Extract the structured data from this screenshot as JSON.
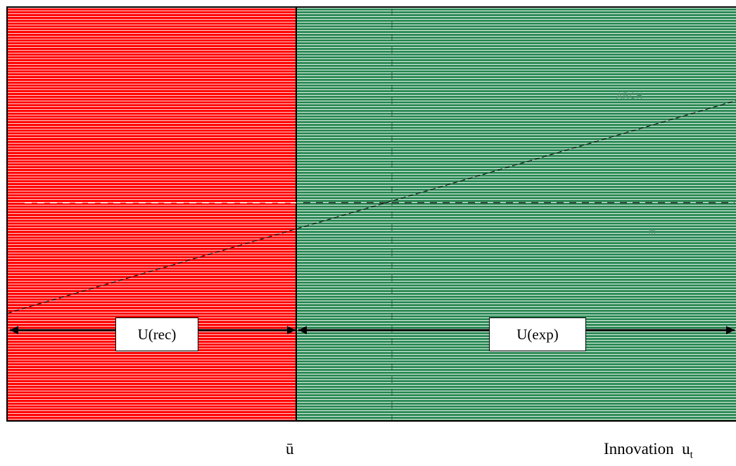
{
  "diagram": {
    "regions": {
      "recession": {
        "color": "#ff0000"
      },
      "expansion": {
        "color": "#2e8b57"
      }
    },
    "labels": {
      "recession_box": "U(rec)",
      "expansion_box": "U(exp)",
      "arch_line": "ARCH",
      "mean_line": "m"
    },
    "axis": {
      "threshold": "ū",
      "innovation": "Innovation",
      "innovation_symbol": "u",
      "innovation_subscript": "t"
    }
  }
}
